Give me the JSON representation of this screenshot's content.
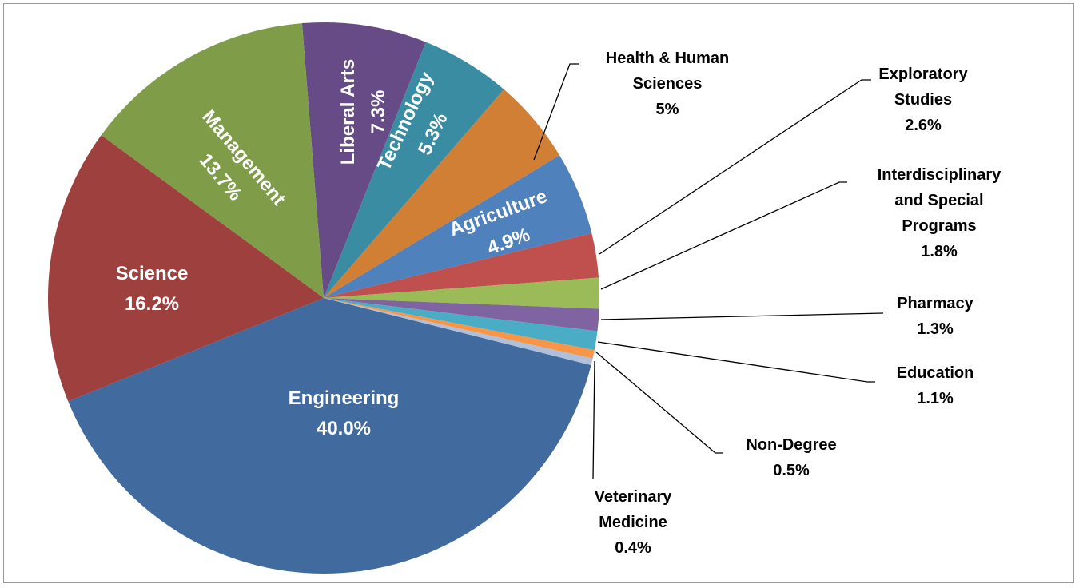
{
  "chart_data": {
    "type": "pie",
    "categories": [
      "Liberal Arts",
      "Technology",
      "Health & Human Sciences",
      "Agriculture",
      "Exploratory Studies",
      "Interdisciplinary and Special Programs",
      "Pharmacy",
      "Education",
      "Non-Degree",
      "Veterinary Medicine",
      "Engineering",
      "Science",
      "Management"
    ],
    "values": [
      7.3,
      5.3,
      5,
      4.9,
      2.6,
      1.8,
      1.3,
      1.1,
      0.5,
      0.4,
      40.0,
      16.2,
      13.7
    ],
    "value_labels": [
      "7.3%",
      "5.3%",
      "5%",
      "4.9%",
      "2.6%",
      "1.8%",
      "1.3%",
      "1.1%",
      "0.5%",
      "0.4%",
      "40.0%",
      "16.2%",
      "13.7%"
    ],
    "colors": [
      "#664b87",
      "#3a8ca3",
      "#d27f36",
      "#4f81bd",
      "#c0504d",
      "#9bbb59",
      "#8064a2",
      "#4bacc6",
      "#f79646",
      "#b0c0da",
      "#416b9e",
      "#9e413e",
      "#7f9c48"
    ]
  }
}
